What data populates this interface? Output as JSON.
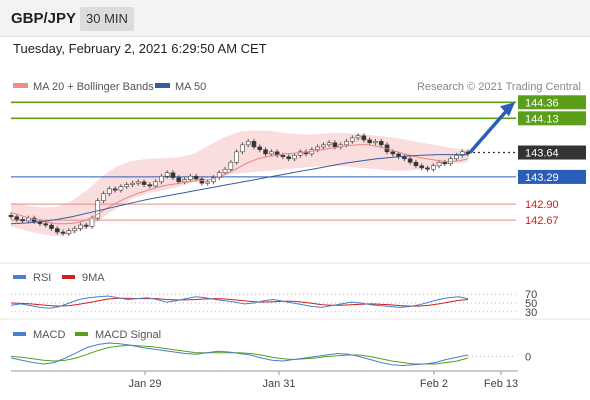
{
  "header": {
    "symbol": "GBP/JPY",
    "timeframe": "30 MIN",
    "datetime": "Tuesday, February 2, 2021 6:29:50 AM CET"
  },
  "chart_data": [
    {
      "type": "candlestick",
      "title": "",
      "legend": [
        {
          "name": "MA 20 + Bollinger Bands",
          "color": "#f08c8c"
        },
        {
          "name": "MA 50",
          "color": "#3a5ba0"
        }
      ],
      "credit": "Research © 2021 Trading Central",
      "ylim": [
        142.3,
        144.45
      ],
      "x_ticks": [
        "Jan 29",
        "Jan 31",
        "Feb 2",
        "Feb 13"
      ],
      "levels": [
        {
          "value": 144.36,
          "label": "144.36",
          "kind": "resistance",
          "color": "#5a9e1a"
        },
        {
          "value": 144.13,
          "label": "144.13",
          "kind": "resistance",
          "color": "#5a9e1a"
        },
        {
          "value": 143.64,
          "label": "143.64",
          "kind": "last",
          "color": "#333333"
        },
        {
          "value": 143.29,
          "label": "143.29",
          "kind": "pivot",
          "color": "#2a5db8"
        },
        {
          "value": 142.9,
          "label": "142.90",
          "kind": "support",
          "color": "#d02020"
        },
        {
          "value": 142.67,
          "label": "142.67",
          "kind": "support",
          "color": "#d02020"
        }
      ],
      "close": [
        142.72,
        142.68,
        142.66,
        142.7,
        142.65,
        142.62,
        142.6,
        142.55,
        142.5,
        142.48,
        142.52,
        142.55,
        142.6,
        142.58,
        142.7,
        142.95,
        143.05,
        143.12,
        143.1,
        143.15,
        143.18,
        143.2,
        143.22,
        143.18,
        143.16,
        143.22,
        143.3,
        143.35,
        143.28,
        143.22,
        143.25,
        143.3,
        143.26,
        143.2,
        143.22,
        143.28,
        143.35,
        143.4,
        143.5,
        143.65,
        143.75,
        143.8,
        143.72,
        143.68,
        143.62,
        143.65,
        143.6,
        143.58,
        143.55,
        143.6,
        143.65,
        143.62,
        143.68,
        143.72,
        143.75,
        143.78,
        143.72,
        143.75,
        143.8,
        143.85,
        143.88,
        143.82,
        143.78,
        143.8,
        143.75,
        143.65,
        143.62,
        143.58,
        143.55,
        143.5,
        143.45,
        143.42,
        143.4,
        143.45,
        143.5,
        143.48,
        143.55,
        143.6,
        143.65,
        143.62
      ],
      "ma20": [
        142.78,
        142.74,
        142.7,
        142.67,
        142.64,
        142.62,
        142.62,
        142.63,
        142.66,
        142.72,
        142.8,
        142.88,
        142.95,
        143.01,
        143.06,
        143.1,
        143.14,
        143.17,
        143.19,
        143.21,
        143.23,
        143.24,
        143.26,
        143.3,
        143.36,
        143.43,
        143.5,
        143.55,
        143.58,
        143.6,
        143.62,
        143.63,
        143.64,
        143.66,
        143.68,
        143.7,
        143.72,
        143.74,
        143.75,
        143.75,
        143.73,
        143.7,
        143.66,
        143.62,
        143.59,
        143.56,
        143.54,
        143.52,
        143.51,
        143.52,
        143.55
      ],
      "ma50": [
        142.62,
        142.63,
        142.65,
        142.68,
        142.72,
        142.77,
        142.82,
        142.87,
        142.92,
        142.97,
        143.01,
        143.05,
        143.09,
        143.13,
        143.17,
        143.21,
        143.25,
        143.29,
        143.33,
        143.37,
        143.41,
        143.45,
        143.49,
        143.52,
        143.55,
        143.57,
        143.59,
        143.6,
        143.61,
        143.61,
        143.61
      ],
      "bb_upper": [
        142.92,
        142.88,
        142.85,
        142.86,
        142.95,
        143.1,
        143.3,
        143.45,
        143.52,
        143.55,
        143.56,
        143.57,
        143.62,
        143.74,
        143.86,
        143.94,
        143.96,
        143.95,
        143.92,
        143.9,
        143.9,
        143.92,
        143.92,
        143.9,
        143.88,
        143.86,
        143.82,
        143.78,
        143.74,
        143.7,
        143.68
      ],
      "bb_lower": [
        142.58,
        142.52,
        142.47,
        142.44,
        142.47,
        142.56,
        142.7,
        142.85,
        142.98,
        143.06,
        143.1,
        143.15,
        143.22,
        143.28,
        143.32,
        143.34,
        143.36,
        143.38,
        143.4,
        143.42,
        143.44,
        143.45,
        143.44,
        143.42,
        143.4,
        143.38,
        143.38,
        143.4,
        143.44,
        143.48,
        143.5
      ],
      "projection": {
        "from": 143.64,
        "to": 144.36
      }
    },
    {
      "type": "line",
      "title": "",
      "series": [
        {
          "name": "RSI",
          "color": "#4a7fd0",
          "values": [
            45,
            48,
            44,
            40,
            38,
            42,
            50,
            58,
            62,
            64,
            66,
            62,
            58,
            60,
            62,
            58,
            52,
            55,
            60,
            64,
            62,
            58,
            55,
            52,
            48,
            50,
            55,
            58,
            54,
            50,
            46,
            42,
            40,
            44,
            48,
            52,
            50,
            46,
            44,
            42,
            40,
            42,
            46,
            52,
            58,
            62,
            64,
            60
          ]
        },
        {
          "name": "9MA",
          "color": "#d02020",
          "values": [
            50,
            49,
            48,
            46,
            44,
            43,
            44,
            47,
            51,
            55,
            59,
            61,
            61,
            60,
            60,
            60,
            58,
            57,
            57,
            58,
            59,
            60,
            59,
            57,
            55,
            53,
            52,
            53,
            54,
            54,
            52,
            49,
            46,
            45,
            45,
            46,
            47,
            48,
            47,
            46,
            44,
            43,
            43,
            45,
            48,
            52,
            56,
            58
          ]
        }
      ],
      "ylim": [
        25,
        75
      ],
      "y_ticks": [
        "70",
        "50",
        "30"
      ],
      "reference_lines": [
        70,
        50,
        30
      ]
    },
    {
      "type": "line",
      "title": "",
      "series": [
        {
          "name": "MACD",
          "color": "#4a7fd0",
          "values": [
            -0.02,
            -0.05,
            -0.08,
            -0.1,
            -0.08,
            -0.02,
            0.05,
            0.12,
            0.16,
            0.18,
            0.17,
            0.15,
            0.12,
            0.1,
            0.08,
            0.06,
            0.04,
            0.03,
            0.05,
            0.07,
            0.06,
            0.04,
            0.02,
            -0.02,
            -0.05,
            -0.06,
            -0.04,
            -0.02,
            0.0,
            0.02,
            0.04,
            0.03,
            0.0,
            -0.04,
            -0.08,
            -0.11,
            -0.12,
            -0.11,
            -0.1,
            -0.08,
            -0.04,
            -0.01,
            0.02
          ]
        },
        {
          "name": "MACD Signal",
          "color": "#5a9e1a",
          "values": [
            0.0,
            -0.01,
            -0.03,
            -0.05,
            -0.06,
            -0.05,
            -0.02,
            0.03,
            0.08,
            0.12,
            0.14,
            0.15,
            0.14,
            0.13,
            0.11,
            0.09,
            0.07,
            0.05,
            0.05,
            0.05,
            0.05,
            0.05,
            0.04,
            0.02,
            -0.01,
            -0.03,
            -0.04,
            -0.03,
            -0.02,
            0.0,
            0.01,
            0.02,
            0.02,
            0.0,
            -0.03,
            -0.06,
            -0.08,
            -0.1,
            -0.1,
            -0.1,
            -0.08,
            -0.06,
            -0.02
          ]
        }
      ],
      "ylim": [
        -0.18,
        0.22
      ],
      "y_ticks": [
        "0"
      ],
      "reference_lines": [
        0
      ]
    }
  ]
}
